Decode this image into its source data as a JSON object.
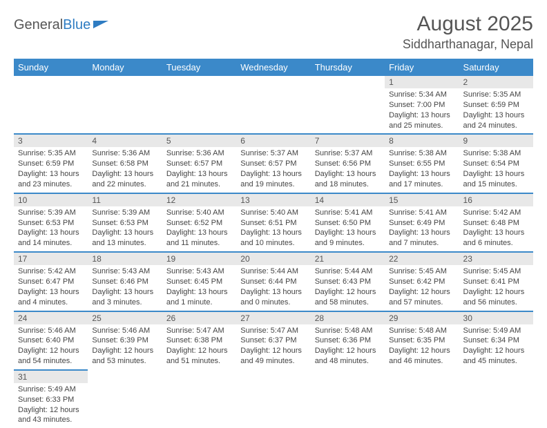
{
  "logo": {
    "general": "General",
    "blue": "Blue"
  },
  "title": "August 2025",
  "location": "Siddharthanagar, Nepal",
  "colors": {
    "header_bg": "#3b89c9",
    "header_fg": "#ffffff",
    "daynum_bg": "#e8e8e8",
    "rule": "#3b89c9",
    "text": "#444444",
    "title": "#555555"
  },
  "day_names": [
    "Sunday",
    "Monday",
    "Tuesday",
    "Wednesday",
    "Thursday",
    "Friday",
    "Saturday"
  ],
  "weeks": [
    [
      {
        "n": "",
        "sr": "",
        "ss": "",
        "dl": ""
      },
      {
        "n": "",
        "sr": "",
        "ss": "",
        "dl": ""
      },
      {
        "n": "",
        "sr": "",
        "ss": "",
        "dl": ""
      },
      {
        "n": "",
        "sr": "",
        "ss": "",
        "dl": ""
      },
      {
        "n": "",
        "sr": "",
        "ss": "",
        "dl": ""
      },
      {
        "n": "1",
        "sr": "Sunrise: 5:34 AM",
        "ss": "Sunset: 7:00 PM",
        "dl": "Daylight: 13 hours and 25 minutes."
      },
      {
        "n": "2",
        "sr": "Sunrise: 5:35 AM",
        "ss": "Sunset: 6:59 PM",
        "dl": "Daylight: 13 hours and 24 minutes."
      }
    ],
    [
      {
        "n": "3",
        "sr": "Sunrise: 5:35 AM",
        "ss": "Sunset: 6:59 PM",
        "dl": "Daylight: 13 hours and 23 minutes."
      },
      {
        "n": "4",
        "sr": "Sunrise: 5:36 AM",
        "ss": "Sunset: 6:58 PM",
        "dl": "Daylight: 13 hours and 22 minutes."
      },
      {
        "n": "5",
        "sr": "Sunrise: 5:36 AM",
        "ss": "Sunset: 6:57 PM",
        "dl": "Daylight: 13 hours and 21 minutes."
      },
      {
        "n": "6",
        "sr": "Sunrise: 5:37 AM",
        "ss": "Sunset: 6:57 PM",
        "dl": "Daylight: 13 hours and 19 minutes."
      },
      {
        "n": "7",
        "sr": "Sunrise: 5:37 AM",
        "ss": "Sunset: 6:56 PM",
        "dl": "Daylight: 13 hours and 18 minutes."
      },
      {
        "n": "8",
        "sr": "Sunrise: 5:38 AM",
        "ss": "Sunset: 6:55 PM",
        "dl": "Daylight: 13 hours and 17 minutes."
      },
      {
        "n": "9",
        "sr": "Sunrise: 5:38 AM",
        "ss": "Sunset: 6:54 PM",
        "dl": "Daylight: 13 hours and 15 minutes."
      }
    ],
    [
      {
        "n": "10",
        "sr": "Sunrise: 5:39 AM",
        "ss": "Sunset: 6:53 PM",
        "dl": "Daylight: 13 hours and 14 minutes."
      },
      {
        "n": "11",
        "sr": "Sunrise: 5:39 AM",
        "ss": "Sunset: 6:53 PM",
        "dl": "Daylight: 13 hours and 13 minutes."
      },
      {
        "n": "12",
        "sr": "Sunrise: 5:40 AM",
        "ss": "Sunset: 6:52 PM",
        "dl": "Daylight: 13 hours and 11 minutes."
      },
      {
        "n": "13",
        "sr": "Sunrise: 5:40 AM",
        "ss": "Sunset: 6:51 PM",
        "dl": "Daylight: 13 hours and 10 minutes."
      },
      {
        "n": "14",
        "sr": "Sunrise: 5:41 AM",
        "ss": "Sunset: 6:50 PM",
        "dl": "Daylight: 13 hours and 9 minutes."
      },
      {
        "n": "15",
        "sr": "Sunrise: 5:41 AM",
        "ss": "Sunset: 6:49 PM",
        "dl": "Daylight: 13 hours and 7 minutes."
      },
      {
        "n": "16",
        "sr": "Sunrise: 5:42 AM",
        "ss": "Sunset: 6:48 PM",
        "dl": "Daylight: 13 hours and 6 minutes."
      }
    ],
    [
      {
        "n": "17",
        "sr": "Sunrise: 5:42 AM",
        "ss": "Sunset: 6:47 PM",
        "dl": "Daylight: 13 hours and 4 minutes."
      },
      {
        "n": "18",
        "sr": "Sunrise: 5:43 AM",
        "ss": "Sunset: 6:46 PM",
        "dl": "Daylight: 13 hours and 3 minutes."
      },
      {
        "n": "19",
        "sr": "Sunrise: 5:43 AM",
        "ss": "Sunset: 6:45 PM",
        "dl": "Daylight: 13 hours and 1 minute."
      },
      {
        "n": "20",
        "sr": "Sunrise: 5:44 AM",
        "ss": "Sunset: 6:44 PM",
        "dl": "Daylight: 13 hours and 0 minutes."
      },
      {
        "n": "21",
        "sr": "Sunrise: 5:44 AM",
        "ss": "Sunset: 6:43 PM",
        "dl": "Daylight: 12 hours and 58 minutes."
      },
      {
        "n": "22",
        "sr": "Sunrise: 5:45 AM",
        "ss": "Sunset: 6:42 PM",
        "dl": "Daylight: 12 hours and 57 minutes."
      },
      {
        "n": "23",
        "sr": "Sunrise: 5:45 AM",
        "ss": "Sunset: 6:41 PM",
        "dl": "Daylight: 12 hours and 56 minutes."
      }
    ],
    [
      {
        "n": "24",
        "sr": "Sunrise: 5:46 AM",
        "ss": "Sunset: 6:40 PM",
        "dl": "Daylight: 12 hours and 54 minutes."
      },
      {
        "n": "25",
        "sr": "Sunrise: 5:46 AM",
        "ss": "Sunset: 6:39 PM",
        "dl": "Daylight: 12 hours and 53 minutes."
      },
      {
        "n": "26",
        "sr": "Sunrise: 5:47 AM",
        "ss": "Sunset: 6:38 PM",
        "dl": "Daylight: 12 hours and 51 minutes."
      },
      {
        "n": "27",
        "sr": "Sunrise: 5:47 AM",
        "ss": "Sunset: 6:37 PM",
        "dl": "Daylight: 12 hours and 49 minutes."
      },
      {
        "n": "28",
        "sr": "Sunrise: 5:48 AM",
        "ss": "Sunset: 6:36 PM",
        "dl": "Daylight: 12 hours and 48 minutes."
      },
      {
        "n": "29",
        "sr": "Sunrise: 5:48 AM",
        "ss": "Sunset: 6:35 PM",
        "dl": "Daylight: 12 hours and 46 minutes."
      },
      {
        "n": "30",
        "sr": "Sunrise: 5:49 AM",
        "ss": "Sunset: 6:34 PM",
        "dl": "Daylight: 12 hours and 45 minutes."
      }
    ],
    [
      {
        "n": "31",
        "sr": "Sunrise: 5:49 AM",
        "ss": "Sunset: 6:33 PM",
        "dl": "Daylight: 12 hours and 43 minutes."
      },
      {
        "n": "",
        "sr": "",
        "ss": "",
        "dl": ""
      },
      {
        "n": "",
        "sr": "",
        "ss": "",
        "dl": ""
      },
      {
        "n": "",
        "sr": "",
        "ss": "",
        "dl": ""
      },
      {
        "n": "",
        "sr": "",
        "ss": "",
        "dl": ""
      },
      {
        "n": "",
        "sr": "",
        "ss": "",
        "dl": ""
      },
      {
        "n": "",
        "sr": "",
        "ss": "",
        "dl": ""
      }
    ]
  ]
}
